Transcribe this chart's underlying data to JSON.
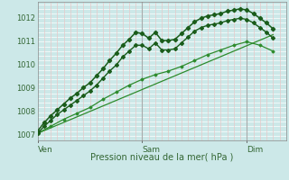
{
  "xlabel": "Pression niveau de la mer( hPa )",
  "ylim": [
    1006.8,
    1012.7
  ],
  "yticks": [
    1007,
    1008,
    1009,
    1010,
    1011,
    1012
  ],
  "background_color": "#cce8e8",
  "grid_h_color": "#ffffff",
  "grid_v_minor_color": "#e8c8c8",
  "grid_v_major_color": "#aaaaaa",
  "line_color_dark": "#1a5c1a",
  "line_color_light": "#2d8b2d",
  "total_hours": 114.0,
  "day_labels": [
    "Ven",
    "Sam",
    "Dim"
  ],
  "day_positions": [
    0,
    48,
    96
  ],
  "series1": [
    [
      0,
      1007.2
    ],
    [
      3,
      1007.55
    ],
    [
      6,
      1007.85
    ],
    [
      9,
      1008.1
    ],
    [
      12,
      1008.35
    ],
    [
      15,
      1008.6
    ],
    [
      18,
      1008.8
    ],
    [
      21,
      1009.05
    ],
    [
      24,
      1009.25
    ],
    [
      27,
      1009.55
    ],
    [
      30,
      1009.85
    ],
    [
      33,
      1010.2
    ],
    [
      36,
      1010.5
    ],
    [
      39,
      1010.85
    ],
    [
      42,
      1011.1
    ],
    [
      45,
      1011.4
    ],
    [
      48,
      1011.35
    ],
    [
      51,
      1011.15
    ],
    [
      54,
      1011.4
    ],
    [
      57,
      1011.05
    ],
    [
      60,
      1011.05
    ],
    [
      63,
      1011.1
    ],
    [
      66,
      1011.35
    ],
    [
      69,
      1011.6
    ],
    [
      72,
      1011.85
    ],
    [
      75,
      1012.0
    ],
    [
      78,
      1012.1
    ],
    [
      81,
      1012.15
    ],
    [
      84,
      1012.2
    ],
    [
      87,
      1012.3
    ],
    [
      90,
      1012.35
    ],
    [
      93,
      1012.4
    ],
    [
      96,
      1012.35
    ],
    [
      99,
      1012.2
    ],
    [
      102,
      1012.0
    ],
    [
      105,
      1011.8
    ],
    [
      108,
      1011.55
    ]
  ],
  "series2": [
    [
      0,
      1007.1
    ],
    [
      3,
      1007.4
    ],
    [
      6,
      1007.65
    ],
    [
      9,
      1007.9
    ],
    [
      12,
      1008.1
    ],
    [
      15,
      1008.3
    ],
    [
      18,
      1008.5
    ],
    [
      21,
      1008.7
    ],
    [
      24,
      1008.9
    ],
    [
      27,
      1009.15
    ],
    [
      30,
      1009.45
    ],
    [
      33,
      1009.75
    ],
    [
      36,
      1010.0
    ],
    [
      39,
      1010.35
    ],
    [
      42,
      1010.6
    ],
    [
      45,
      1010.85
    ],
    [
      48,
      1010.85
    ],
    [
      51,
      1010.7
    ],
    [
      54,
      1010.95
    ],
    [
      57,
      1010.65
    ],
    [
      60,
      1010.65
    ],
    [
      63,
      1010.7
    ],
    [
      66,
      1010.95
    ],
    [
      69,
      1011.2
    ],
    [
      72,
      1011.45
    ],
    [
      75,
      1011.6
    ],
    [
      78,
      1011.7
    ],
    [
      81,
      1011.75
    ],
    [
      84,
      1011.8
    ],
    [
      87,
      1011.9
    ],
    [
      90,
      1011.95
    ],
    [
      93,
      1012.0
    ],
    [
      96,
      1011.95
    ],
    [
      99,
      1011.8
    ],
    [
      102,
      1011.6
    ],
    [
      105,
      1011.4
    ],
    [
      108,
      1011.15
    ]
  ],
  "series3": [
    [
      0,
      1007.1
    ],
    [
      6,
      1007.4
    ],
    [
      12,
      1007.7
    ],
    [
      18,
      1007.95
    ],
    [
      24,
      1008.2
    ],
    [
      30,
      1008.55
    ],
    [
      36,
      1008.85
    ],
    [
      42,
      1009.15
    ],
    [
      48,
      1009.4
    ],
    [
      54,
      1009.6
    ],
    [
      60,
      1009.75
    ],
    [
      66,
      1009.95
    ],
    [
      72,
      1010.2
    ],
    [
      78,
      1010.45
    ],
    [
      84,
      1010.65
    ],
    [
      90,
      1010.85
    ],
    [
      96,
      1011.0
    ],
    [
      102,
      1010.85
    ],
    [
      108,
      1010.6
    ]
  ],
  "series_linear": [
    [
      0,
      1007.1
    ],
    [
      108,
      1011.3
    ]
  ]
}
